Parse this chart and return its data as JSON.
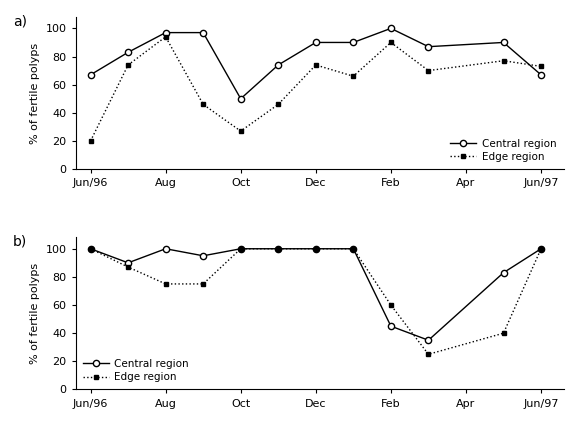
{
  "x_tick_positions": [
    0,
    1,
    2,
    3,
    4,
    5,
    6
  ],
  "x_tick_labels": [
    "Jun/96",
    "Aug",
    "Oct",
    "Dec",
    "Feb",
    "Apr",
    "Jun/97"
  ],
  "panel_a": {
    "central_x": [
      0,
      0.5,
      1.0,
      1.5,
      2.0,
      2.5,
      3.0,
      3.5,
      4.0,
      4.5,
      5.5,
      6.0
    ],
    "central_y": [
      67,
      83,
      97,
      97,
      50,
      74,
      90,
      90,
      100,
      87,
      90,
      67
    ],
    "edge_x": [
      0,
      0.5,
      1.0,
      1.5,
      2.0,
      2.5,
      3.0,
      3.5,
      4.0,
      4.5,
      5.5,
      6.0
    ],
    "edge_y": [
      20,
      74,
      94,
      46,
      27,
      46,
      74,
      66,
      90,
      70,
      77,
      73
    ]
  },
  "panel_b": {
    "central_x": [
      0,
      0.5,
      1.0,
      1.5,
      2.0,
      2.5,
      3.0,
      3.5,
      4.0,
      4.5,
      5.5,
      6.0
    ],
    "central_y": [
      100,
      90,
      100,
      95,
      100,
      100,
      100,
      100,
      45,
      35,
      83,
      100
    ],
    "edge_x": [
      0,
      0.5,
      1.0,
      1.5,
      2.0,
      2.5,
      3.0,
      3.5,
      4.0,
      4.5,
      5.5,
      6.0
    ],
    "edge_y": [
      100,
      87,
      75,
      75,
      100,
      100,
      100,
      100,
      60,
      25,
      40,
      100
    ]
  },
  "xlim": [
    -0.2,
    6.3
  ],
  "ylim": [
    0,
    108
  ],
  "yticks": [
    0,
    20,
    40,
    60,
    80,
    100
  ],
  "ylabel": "% of fertile polyps",
  "panel_labels": [
    "a)",
    "b)"
  ],
  "legend_central": "Central region",
  "legend_edge": "Edge region",
  "line_color": "#000000",
  "bg_color": "#ffffff"
}
